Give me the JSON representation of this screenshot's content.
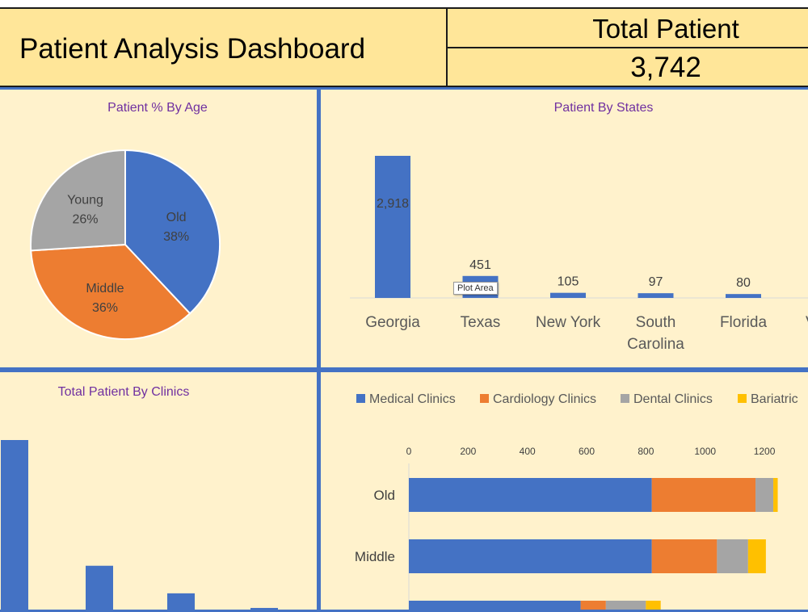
{
  "header": {
    "title": "Patient Analysis Dashboard",
    "total_label": "Total Patient",
    "total_value": "3,742"
  },
  "colors": {
    "header_bg": "#ffe699",
    "panel_bg": "#fff2cc",
    "panel_border": "#4472c4",
    "title_color": "#7030a0",
    "series": [
      "#4472c4",
      "#ed7d31",
      "#a5a5a5",
      "#ffc000"
    ]
  },
  "tooltip": "Plot Area",
  "chart_data": [
    {
      "id": "age",
      "type": "pie",
      "title": "Patient % By Age",
      "slices": [
        {
          "label": "Old",
          "value": 38,
          "display": "38%"
        },
        {
          "label": "Middle",
          "value": 36,
          "display": "36%"
        },
        {
          "label": "Young",
          "value": 26,
          "display": "26%"
        }
      ]
    },
    {
      "id": "states",
      "type": "bar",
      "title": "Patient By States",
      "categories": [
        "Georgia",
        "Texas",
        "New York",
        "South Carolina",
        "Florida",
        "V"
      ],
      "values": [
        2918,
        451,
        105,
        97,
        80,
        null
      ],
      "labels": [
        "2,918",
        "451",
        "105",
        "97",
        "80",
        ""
      ]
    },
    {
      "id": "clinics",
      "type": "bar",
      "title": "Total Patient By Clinics",
      "values": [
        2150,
        600,
        260,
        80
      ]
    },
    {
      "id": "age_by_clinic",
      "type": "bar",
      "orientation": "horizontal",
      "stacked": true,
      "legend": [
        "Medical Clinics",
        "Cardiology Clinics",
        "Dental Clinics",
        "Bariatric"
      ],
      "legend_position": "top",
      "x_ticks": [
        "0",
        "200",
        "400",
        "600",
        "800",
        "1000",
        "1200"
      ],
      "xlim": [
        0,
        1200
      ],
      "categories": [
        "Old",
        "Middle",
        ""
      ],
      "series": [
        {
          "name": "Medical Clinics",
          "values": [
            820,
            820,
            580
          ]
        },
        {
          "name": "Cardiology Clinics",
          "values": [
            350,
            220,
            85
          ]
        },
        {
          "name": "Dental Clinics",
          "values": [
            60,
            105,
            135
          ]
        },
        {
          "name": "Bariatric",
          "values": [
            15,
            60,
            50
          ]
        }
      ]
    }
  ]
}
